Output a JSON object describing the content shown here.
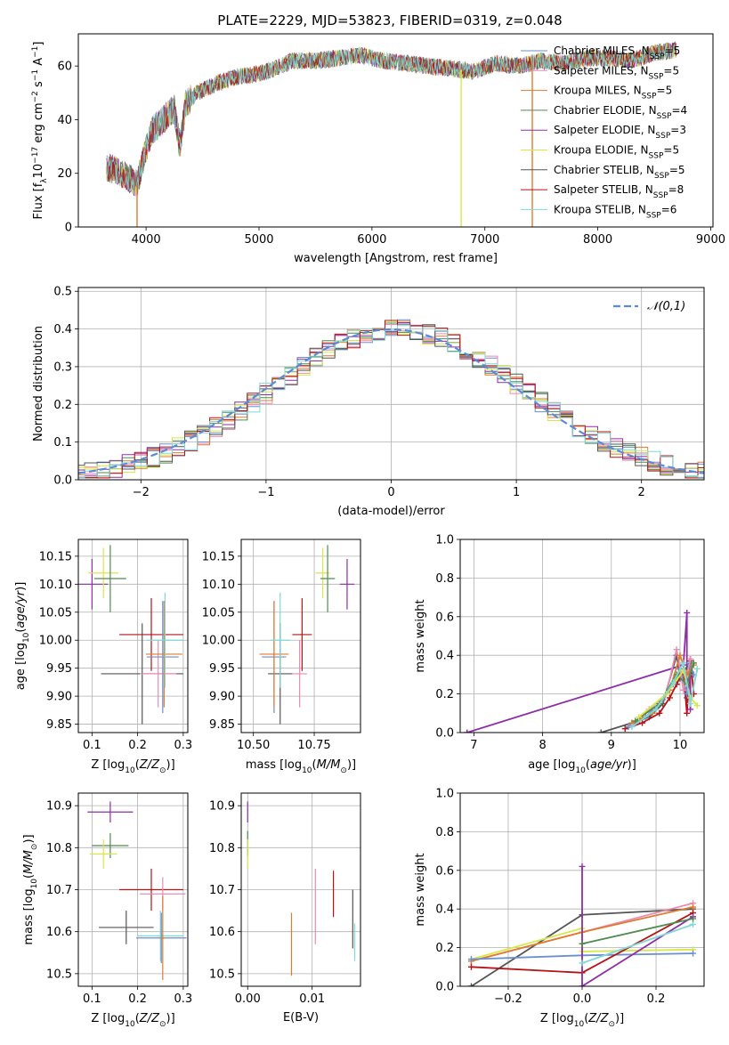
{
  "figure": {
    "title": "PLATE=2229, MJD=53823, FIBERID=0319, z=0.048"
  },
  "colors": {
    "Chabrier MILES": "#6b8fd0",
    "Salpeter MILES": "#e98bb2",
    "Kroupa MILES": "#e07b2e",
    "Chabrier ELODIE": "#4f8a4f",
    "Salpeter ELODIE": "#8e2ea8",
    "Kroupa ELODIE": "#d7e84a",
    "Chabrier STELIB": "#555555",
    "Salpeter STELIB": "#b51416",
    "Kroupa STELIB": "#7fd9d6"
  },
  "chart_data": [
    {
      "id": "spectrum",
      "type": "line",
      "title": "PLATE=2229, MJD=53823, FIBERID=0319, z=0.048",
      "xlabel": "wavelength [Angstrom, rest frame]",
      "ylabel": "Flux [f_λ 10^-17 erg cm^-2 s^-1 A^-1]",
      "xlim": [
        3400,
        9020
      ],
      "ylim": [
        0,
        72
      ],
      "xticks": [
        4000,
        5000,
        6000,
        7000,
        8000,
        9000
      ],
      "yticks": [
        0,
        20,
        40,
        60
      ],
      "legend_loc": "right",
      "legend": [
        {
          "name": "Chabrier MILES",
          "nssp": "5"
        },
        {
          "name": "Salpeter MILES",
          "nssp": "5"
        },
        {
          "name": "Kroupa MILES",
          "nssp": "5"
        },
        {
          "name": "Chabrier ELODIE",
          "nssp": "4"
        },
        {
          "name": "Salpeter ELODIE",
          "nssp": "3"
        },
        {
          "name": "Kroupa ELODIE",
          "nssp": "5"
        },
        {
          "name": "Chabrier STELIB",
          "nssp": "5"
        },
        {
          "name": "Salpeter STELIB",
          "nssp": "8"
        },
        {
          "name": "Kroupa STELIB",
          "nssp": "6"
        }
      ],
      "envelope": {
        "x": [
          3650,
          3750,
          3850,
          3920,
          3960,
          4050,
          4150,
          4250,
          4300,
          4350,
          4450,
          4600,
          4800,
          5000,
          5200,
          5300,
          5500,
          5700,
          5900,
          6100,
          6300,
          6500,
          6700,
          6900,
          7100,
          7300,
          7500,
          7700,
          7900,
          8100,
          8300,
          8500,
          8700
        ],
        "y": [
          22,
          21,
          18,
          16,
          23,
          36,
          40,
          44,
          30,
          46,
          50,
          53,
          56,
          57,
          60,
          62,
          62,
          63,
          64,
          62,
          61,
          60,
          59,
          58,
          61,
          60,
          62,
          61,
          63,
          63,
          62,
          65,
          66
        ]
      }
    },
    {
      "id": "residuals",
      "type": "histogram",
      "xlabel": "(data-model)/error",
      "ylabel": "Normed distribution",
      "xlim": [
        -2.5,
        2.5
      ],
      "ylim": [
        0,
        0.51
      ],
      "xticks": [
        -2,
        -1,
        0,
        1,
        2
      ],
      "yticks": [
        0.0,
        0.1,
        0.2,
        0.3,
        0.4,
        0.5
      ],
      "bin_width": 0.1,
      "reference_curve": {
        "name": "𝒩(0,1)",
        "style": "dashed"
      }
    },
    {
      "id": "age_vs_Z",
      "type": "errorbar",
      "xlabel": "Z [log10(Z/Z☉)]",
      "ylabel": "age  [log10(age/yr)]",
      "xlim": [
        0.07,
        0.31
      ],
      "ylim": [
        9.835,
        10.18
      ],
      "xticks": [
        0.1,
        0.2,
        0.3
      ],
      "yticks": [
        9.85,
        9.9,
        9.95,
        10.0,
        10.05,
        10.1,
        10.15
      ],
      "points": [
        {
          "s": "Salpeter ELODIE",
          "x": 0.1,
          "y": 10.1,
          "ex": 0.035,
          "ey": 0.045
        },
        {
          "s": "Kroupa ELODIE",
          "x": 0.125,
          "y": 10.12,
          "ex": 0.033,
          "ey": 0.045
        },
        {
          "s": "Chabrier ELODIE",
          "x": 0.14,
          "y": 10.11,
          "ex": 0.035,
          "ey": 0.06
        },
        {
          "s": "Chabrier STELIB",
          "x": 0.21,
          "y": 9.94,
          "ex": 0.09,
          "ey": 0.09
        },
        {
          "s": "Salpeter STELIB",
          "x": 0.23,
          "y": 10.01,
          "ex": 0.07,
          "ey": 0.065
        },
        {
          "s": "Salpeter MILES",
          "x": 0.245,
          "y": 9.94,
          "ex": 0.04,
          "ey": 0.06
        },
        {
          "s": "Chabrier MILES",
          "x": 0.255,
          "y": 9.97,
          "ex": 0.035,
          "ey": 0.1
        },
        {
          "s": "Kroupa MILES",
          "x": 0.258,
          "y": 9.975,
          "ex": 0.04,
          "ey": 0.095
        },
        {
          "s": "Kroupa STELIB",
          "x": 0.26,
          "y": 10.0,
          "ex": 0.04,
          "ey": 0.085
        }
      ]
    },
    {
      "id": "age_vs_mass",
      "type": "errorbar",
      "xlabel": "mass [log10(M/M☉)]",
      "ylim": [
        9.835,
        10.18
      ],
      "xlim": [
        10.45,
        10.94
      ],
      "xticks": [
        10.5,
        10.75
      ],
      "yticks": [
        9.85,
        9.9,
        9.95,
        10.0,
        10.05,
        10.1,
        10.15
      ],
      "points": [
        {
          "s": "Salpeter ELODIE",
          "x": 10.885,
          "y": 10.1,
          "ex": 0.03,
          "ey": 0.045
        },
        {
          "s": "Kroupa ELODIE",
          "x": 10.785,
          "y": 10.12,
          "ex": 0.03,
          "ey": 0.045
        },
        {
          "s": "Chabrier ELODIE",
          "x": 10.805,
          "y": 10.11,
          "ex": 0.03,
          "ey": 0.06
        },
        {
          "s": "Chabrier STELIB",
          "x": 10.61,
          "y": 9.94,
          "ex": 0.05,
          "ey": 0.09
        },
        {
          "s": "Salpeter STELIB",
          "x": 10.7,
          "y": 10.01,
          "ex": 0.04,
          "ey": 0.065
        },
        {
          "s": "Salpeter MILES",
          "x": 10.69,
          "y": 9.94,
          "ex": 0.03,
          "ey": 0.06
        },
        {
          "s": "Chabrier MILES",
          "x": 10.585,
          "y": 9.97,
          "ex": 0.05,
          "ey": 0.1
        },
        {
          "s": "Kroupa MILES",
          "x": 10.585,
          "y": 9.975,
          "ex": 0.06,
          "ey": 0.095
        },
        {
          "s": "Kroupa STELIB",
          "x": 10.61,
          "y": 10.0,
          "ex": 0.04,
          "ey": 0.085
        }
      ]
    },
    {
      "id": "weight_vs_age",
      "type": "line",
      "xlabel": "age  [log10(age/yr)]",
      "ylabel": "mass weight",
      "xlim": [
        6.8,
        10.35
      ],
      "ylim": [
        0,
        1.0
      ],
      "xticks": [
        7,
        8,
        9,
        10
      ],
      "yticks": [
        0.0,
        0.2,
        0.4,
        0.6,
        0.8,
        1.0
      ],
      "series": [
        {
          "s": "Salpeter ELODIE",
          "x": [
            6.9,
            10.05,
            10.1,
            10.1,
            10.15,
            10.15
          ],
          "y": [
            0.0,
            0.35,
            0.62,
            0.18,
            0.3,
            0.12
          ]
        },
        {
          "s": "Chabrier STELIB",
          "x": [
            8.85,
            9.3,
            9.55,
            9.75,
            9.95,
            10.0,
            10.15
          ],
          "y": [
            0.0,
            0.05,
            0.08,
            0.15,
            0.4,
            0.28,
            0.37
          ]
        },
        {
          "s": "Salpeter STELIB",
          "x": [
            9.2,
            9.45,
            9.7,
            9.85,
            9.95,
            10.05,
            10.1,
            10.15,
            10.2
          ],
          "y": [
            0.02,
            0.05,
            0.1,
            0.18,
            0.25,
            0.32,
            0.1,
            0.38,
            0.2
          ]
        },
        {
          "s": "Chabrier MILES",
          "x": [
            9.25,
            9.5,
            9.75,
            9.9,
            10.0,
            10.1,
            10.15,
            10.2
          ],
          "y": [
            0.03,
            0.08,
            0.17,
            0.25,
            0.33,
            0.2,
            0.35,
            0.3
          ]
        },
        {
          "s": "Salpeter MILES",
          "x": [
            9.3,
            9.55,
            9.8,
            9.95,
            10.05,
            10.15
          ],
          "y": [
            0.04,
            0.12,
            0.2,
            0.43,
            0.22,
            0.38
          ]
        },
        {
          "s": "Kroupa MILES",
          "x": [
            9.3,
            9.6,
            9.85,
            10.0,
            10.1,
            10.2
          ],
          "y": [
            0.05,
            0.1,
            0.22,
            0.4,
            0.3,
            0.35
          ]
        },
        {
          "s": "Chabrier ELODIE",
          "x": [
            9.35,
            9.7,
            9.95,
            10.1,
            10.2
          ],
          "y": [
            0.06,
            0.15,
            0.3,
            0.25,
            0.36
          ]
        },
        {
          "s": "Kroupa ELODIE",
          "x": [
            9.4,
            9.8,
            10.05,
            10.15,
            10.25
          ],
          "y": [
            0.08,
            0.2,
            0.32,
            0.18,
            0.14
          ]
        },
        {
          "s": "Kroupa STELIB",
          "x": [
            9.3,
            9.65,
            9.9,
            10.05,
            10.15,
            10.25
          ],
          "y": [
            0.03,
            0.12,
            0.26,
            0.36,
            0.15,
            0.33
          ]
        }
      ]
    },
    {
      "id": "mass_vs_Z",
      "type": "errorbar",
      "xlabel": "Z [log10(Z/Z☉)]",
      "ylabel": "mass [log10(M/M☉)]",
      "xlim": [
        0.07,
        0.31
      ],
      "ylim": [
        10.47,
        10.93
      ],
      "xticks": [
        0.1,
        0.2,
        0.3
      ],
      "yticks": [
        10.5,
        10.6,
        10.7,
        10.8,
        10.9
      ],
      "points": [
        {
          "s": "Salpeter ELODIE",
          "x": 0.14,
          "y": 10.885,
          "ex": 0.05,
          "ey": 0.025
        },
        {
          "s": "Chabrier ELODIE",
          "x": 0.14,
          "y": 10.805,
          "ex": 0.04,
          "ey": 0.03
        },
        {
          "s": "Kroupa ELODIE",
          "x": 0.125,
          "y": 10.785,
          "ex": 0.03,
          "ey": 0.035
        },
        {
          "s": "Salpeter STELIB",
          "x": 0.23,
          "y": 10.7,
          "ex": 0.07,
          "ey": 0.05
        },
        {
          "s": "Salpeter MILES",
          "x": 0.255,
          "y": 10.69,
          "ex": 0.05,
          "ey": 0.04
        },
        {
          "s": "Chabrier STELIB",
          "x": 0.175,
          "y": 10.61,
          "ex": 0.06,
          "ey": 0.04
        },
        {
          "s": "Kroupa STELIB",
          "x": 0.25,
          "y": 10.59,
          "ex": 0.05,
          "ey": 0.06
        },
        {
          "s": "Chabrier MILES",
          "x": 0.252,
          "y": 10.585,
          "ex": 0.055,
          "ey": 0.06
        },
        {
          "s": "Kroupa MILES",
          "x": 0.255,
          "y": 10.585,
          "ex": 0.005,
          "ey": 0.1
        }
      ]
    },
    {
      "id": "mass_vs_EBV",
      "type": "errorbar",
      "xlabel": "E(B-V)",
      "xlim": [
        -0.001,
        0.0175
      ],
      "ylim": [
        10.47,
        10.93
      ],
      "xticks": [
        0.0,
        0.01
      ],
      "yticks": [
        10.5,
        10.6,
        10.7,
        10.8,
        10.9
      ],
      "points": [
        {
          "s": "Salpeter ELODIE",
          "x": 0.0,
          "y": 10.885,
          "ex": 0.0,
          "ey": 0.025
        },
        {
          "s": "Chabrier ELODIE",
          "x": 0.0,
          "y": 10.81,
          "ex": 0.0,
          "ey": 0.03
        },
        {
          "s": "Kroupa ELODIE",
          "x": 0.0,
          "y": 10.785,
          "ex": 0.0,
          "ey": 0.035
        },
        {
          "s": "Kroupa MILES",
          "x": 0.0068,
          "y": 10.57,
          "ex": 0.0,
          "ey": 0.075
        },
        {
          "s": "Salpeter MILES",
          "x": 0.0105,
          "y": 10.66,
          "ex": 0.0,
          "ey": 0.09
        },
        {
          "s": "Salpeter STELIB",
          "x": 0.0133,
          "y": 10.69,
          "ex": 0.0,
          "ey": 0.055
        },
        {
          "s": "Chabrier STELIB",
          "x": 0.0163,
          "y": 10.63,
          "ex": 0.0,
          "ey": 0.07
        },
        {
          "s": "Kroupa STELIB",
          "x": 0.0166,
          "y": 10.575,
          "ex": 0.0,
          "ey": 0.045
        }
      ]
    },
    {
      "id": "weight_vs_Z",
      "type": "line",
      "xlabel": "Z [log10(Z/Z☉)]",
      "ylabel": "mass weight",
      "xlim": [
        -0.33,
        0.33
      ],
      "ylim": [
        0,
        1.0
      ],
      "xticks": [
        -0.2,
        0.0,
        0.2
      ],
      "yticks": [
        0.0,
        0.2,
        0.4,
        0.6,
        0.8,
        1.0
      ],
      "series": [
        {
          "s": "Chabrier STELIB",
          "x": [
            -0.3,
            0.0,
            0.3
          ],
          "y": [
            0.0,
            0.37,
            0.4
          ]
        },
        {
          "s": "Salpeter MILES",
          "x": [
            -0.3,
            0.0,
            0.3
          ],
          "y": [
            0.13,
            0.28,
            0.43
          ]
        },
        {
          "s": "Kroupa MILES",
          "x": [
            -0.3,
            0.0,
            0.3
          ],
          "y": [
            0.13,
            0.28,
            0.41
          ]
        },
        {
          "s": "Kroupa ELODIE",
          "x": [
            -0.3,
            0.0,
            0.0,
            0.3
          ],
          "y": [
            0.14,
            0.3,
            0.18,
            0.19
          ]
        },
        {
          "s": "Chabrier MILES",
          "x": [
            -0.3,
            0.0,
            0.3
          ],
          "y": [
            0.14,
            0.16,
            0.17
          ]
        },
        {
          "s": "Salpeter STELIB",
          "x": [
            -0.3,
            0.0,
            0.3
          ],
          "y": [
            0.1,
            0.07,
            0.38
          ]
        },
        {
          "s": "Salpeter ELODIE",
          "x": [
            0.0,
            0.0,
            0.3
          ],
          "y": [
            0.62,
            0.0,
            0.36
          ]
        },
        {
          "s": "Kroupa STELIB",
          "x": [
            0.0,
            0.3
          ],
          "y": [
            0.12,
            0.32
          ]
        },
        {
          "s": "Chabrier ELODIE",
          "x": [
            0.0,
            0.3
          ],
          "y": [
            0.22,
            0.35
          ]
        }
      ]
    }
  ]
}
